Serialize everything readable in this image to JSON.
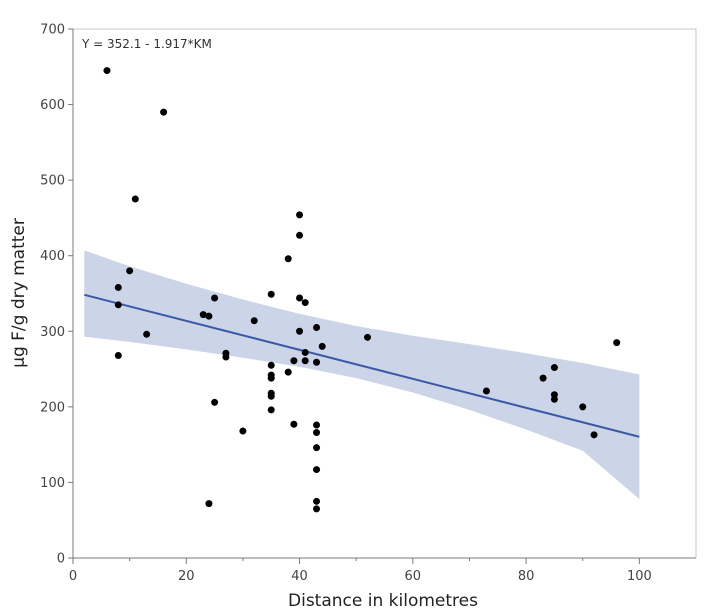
{
  "chart_data": {
    "type": "scatter",
    "title": "",
    "xlabel": "Distance in kilometres",
    "ylabel": "µg F/g dry matter",
    "xlim": [
      0,
      110
    ],
    "ylim": [
      0,
      700
    ],
    "x_ticks": [
      0,
      20,
      40,
      60,
      80,
      100
    ],
    "y_ticks": [
      0,
      100,
      200,
      300,
      400,
      500,
      600,
      700
    ],
    "grid": false,
    "annotation": "Y = 352.1 - 1.917*KM",
    "fit": {
      "intercept": 352.1,
      "slope": -1.917,
      "x_range": [
        2,
        100
      ],
      "color": "#3a5aa6"
    },
    "confidence_band": {
      "color": "#ccd4e8",
      "x": [
        2,
        10,
        20,
        30,
        40,
        50,
        60,
        70,
        80,
        90,
        100
      ],
      "upper": [
        407,
        386,
        363,
        342,
        323,
        307,
        294,
        283,
        271,
        258,
        243
      ],
      "lower": [
        293,
        286,
        276,
        265,
        253,
        238,
        219,
        196,
        170,
        142,
        78
      ]
    },
    "points": {
      "color": "#000000",
      "x": [
        6,
        16,
        11,
        10,
        8,
        8,
        8,
        13,
        25,
        23,
        24,
        25,
        27,
        27,
        24,
        30,
        32,
        35,
        35,
        35,
        35,
        35,
        35,
        35,
        38,
        38,
        39,
        39,
        40,
        40,
        40,
        40,
        41,
        41,
        41,
        43,
        43,
        43,
        43,
        43,
        43,
        43,
        43,
        44,
        52,
        73,
        83,
        85,
        85,
        85,
        90,
        92,
        96
      ],
      "y": [
        645,
        590,
        475,
        380,
        358,
        335,
        268,
        296,
        344,
        322,
        320,
        206,
        271,
        266,
        72,
        168,
        314,
        349,
        255,
        242,
        238,
        218,
        214,
        196,
        396,
        246,
        261,
        177,
        454,
        427,
        344,
        300,
        338,
        272,
        261,
        305,
        259,
        176,
        166,
        146,
        117,
        75,
        65,
        280,
        292,
        221,
        238,
        252,
        216,
        210,
        200,
        163,
        285
      ]
    }
  }
}
